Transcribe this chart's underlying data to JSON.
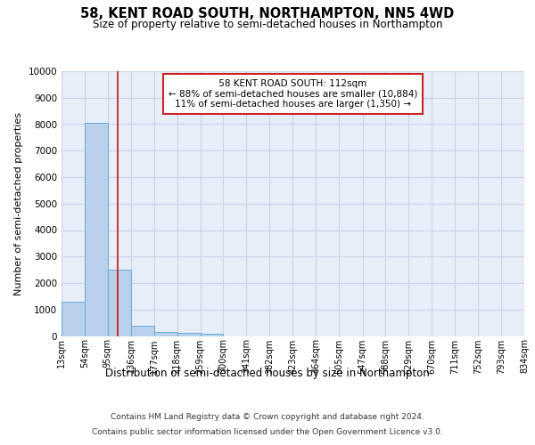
{
  "title": "58, KENT ROAD SOUTH, NORTHAMPTON, NN5 4WD",
  "subtitle": "Size of property relative to semi-detached houses in Northampton",
  "xlabel_bottom": "Distribution of semi-detached houses by size in Northampton",
  "ylabel": "Number of semi-detached properties",
  "footer_line1": "Contains HM Land Registry data © Crown copyright and database right 2024.",
  "footer_line2": "Contains public sector information licensed under the Open Government Licence v3.0.",
  "annotation_title": "58 KENT ROAD SOUTH: 112sqm",
  "annotation_line1": "← 88% of semi-detached houses are smaller (10,884)",
  "annotation_line2": "11% of semi-detached houses are larger (1,350) →",
  "property_size": 112,
  "bar_edges": [
    13,
    54,
    95,
    136,
    177,
    218,
    259,
    300,
    341,
    382,
    423,
    464,
    505,
    547,
    588,
    629,
    670,
    711,
    752,
    793,
    834
  ],
  "bar_values": [
    1300,
    8050,
    2500,
    380,
    160,
    130,
    90,
    0,
    0,
    0,
    0,
    0,
    0,
    0,
    0,
    0,
    0,
    0,
    0,
    0
  ],
  "bar_color": "#b8d0ea",
  "bar_edge_color": "#6aaad4",
  "red_line_color": "#cc2222",
  "grid_color": "#c8d4e8",
  "background_color": "#e8eef8",
  "ylim": [
    0,
    10000
  ],
  "annotation_box_color": "white",
  "annotation_box_edge": "#cc2222"
}
